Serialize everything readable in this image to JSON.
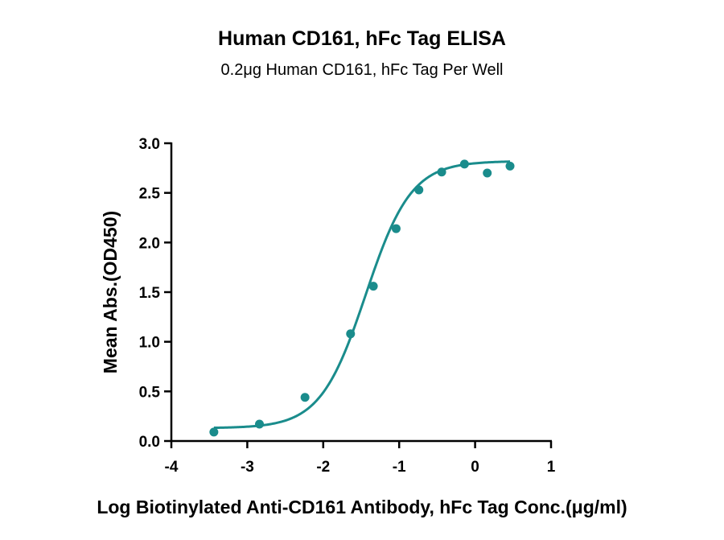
{
  "chart_data": {
    "type": "scatter",
    "title": "Human CD161, hFc Tag ELISA",
    "subtitle": "0.2μg Human CD161, hFc Tag Per Well",
    "xlabel": "Log Biotinylated Anti-CD161 Antibody, hFc Tag Conc.(μg/ml)",
    "ylabel": "Mean Abs.(OD450)",
    "xlim": [
      -4,
      1
    ],
    "ylim": [
      0,
      3
    ],
    "x_ticks": [
      "-4",
      "-3",
      "-2",
      "-1",
      "0",
      "1"
    ],
    "y_ticks": [
      "0.0",
      "0.5",
      "1.0",
      "1.5",
      "2.0",
      "2.5",
      "3.0"
    ],
    "grid": false,
    "legend": "none",
    "series": [
      {
        "points": [
          {
            "x": -3.44,
            "y": 0.09
          },
          {
            "x": -2.84,
            "y": 0.17
          },
          {
            "x": -2.24,
            "y": 0.44
          },
          {
            "x": -1.64,
            "y": 1.08
          },
          {
            "x": -1.34,
            "y": 1.56
          },
          {
            "x": -1.04,
            "y": 2.14
          },
          {
            "x": -0.74,
            "y": 2.53
          },
          {
            "x": -0.44,
            "y": 2.71
          },
          {
            "x": -0.14,
            "y": 2.79
          },
          {
            "x": 0.16,
            "y": 2.7
          },
          {
            "x": 0.46,
            "y": 2.77
          }
        ],
        "fit": {
          "model": "4PL",
          "bottom": 0.13,
          "top": 2.82,
          "ec50_log": -1.44,
          "hill": 1.45,
          "x_range": [
            -3.44,
            0.46
          ]
        }
      }
    ],
    "colors": {
      "series": "#1a8c8c",
      "axis": "#000000"
    }
  }
}
